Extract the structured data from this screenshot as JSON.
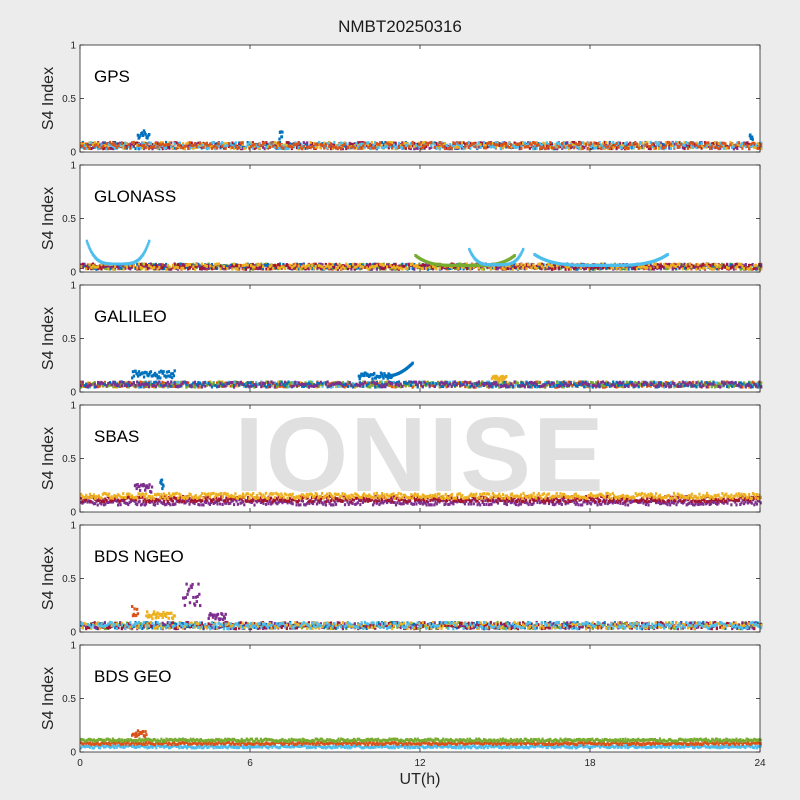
{
  "figure": {
    "title": "NMBT20250316",
    "xlabel": "UT(h)",
    "watermark": "IONISE"
  },
  "colors": [
    "#0072BD",
    "#D95319",
    "#EDB120",
    "#7E2F8E",
    "#77AC30",
    "#4DBEEE",
    "#A2142F"
  ],
  "chart_data": [
    {
      "type": "scatter",
      "panel_label": "GPS",
      "ylabel": "S4 Index",
      "xlim": [
        0,
        24
      ],
      "ylim": [
        0,
        1
      ],
      "xticks": [
        0,
        6,
        12,
        18,
        24
      ],
      "yticks": [
        0,
        0.5,
        1
      ],
      "baseline": 0.06,
      "noise": 0.03,
      "events": [
        {
          "x0": 2.0,
          "x1": 2.4,
          "peak": 0.2
        },
        {
          "x0": 7.0,
          "x1": 7.1,
          "peak": 0.19
        },
        {
          "x0": 23.6,
          "x1": 23.7,
          "peak": 0.18
        }
      ]
    },
    {
      "type": "scatter",
      "panel_label": "GLONASS",
      "ylabel": "S4 Index",
      "xlim": [
        0,
        24
      ],
      "ylim": [
        0,
        1
      ],
      "xticks": [
        0,
        6,
        12,
        18,
        24
      ],
      "yticks": [
        0,
        0.5,
        1
      ],
      "baseline": 0.05,
      "noise": 0.025,
      "events": [
        {
          "x0": 0.2,
          "x1": 2.4,
          "peak": 0.3,
          "shape": "u",
          "color": 5
        },
        {
          "x0": 11.8,
          "x1": 15.3,
          "peak": 0.16,
          "shape": "u",
          "color": 4
        },
        {
          "x0": 13.7,
          "x1": 15.6,
          "peak": 0.22,
          "shape": "u",
          "color": 5
        },
        {
          "x0": 16.0,
          "x1": 20.7,
          "peak": 0.17,
          "shape": "u",
          "color": 5
        }
      ]
    },
    {
      "type": "scatter",
      "panel_label": "GALILEO",
      "ylabel": "S4 Index",
      "xlim": [
        0,
        24
      ],
      "ylim": [
        0,
        1
      ],
      "xticks": [
        0,
        6,
        12,
        18,
        24
      ],
      "yticks": [
        0,
        0.5,
        1
      ],
      "baseline": 0.07,
      "noise": 0.025,
      "events": [
        {
          "x0": 1.8,
          "x1": 3.3,
          "peak": 0.2
        },
        {
          "x0": 9.8,
          "x1": 11.0,
          "peak": 0.18,
          "color": 0
        },
        {
          "x0": 10.8,
          "x1": 11.7,
          "peak": 0.27,
          "shape": "rise",
          "color": 0
        },
        {
          "x0": 14.5,
          "x1": 15.0,
          "peak": 0.15,
          "color": 2
        }
      ]
    },
    {
      "type": "scatter",
      "panel_label": "SBAS",
      "ylabel": "S4 Index",
      "xlim": [
        0,
        24
      ],
      "ylim": [
        0,
        1
      ],
      "xticks": [
        0,
        6,
        12,
        18,
        24
      ],
      "yticks": [
        0,
        0.5,
        1
      ],
      "baseline": 0.12,
      "noise": 0.025,
      "band": true,
      "events": [
        {
          "x0": 1.9,
          "x1": 2.5,
          "peak": 0.26,
          "color": 3
        },
        {
          "x0": 2.8,
          "x1": 2.9,
          "peak": 0.3,
          "color": 0
        }
      ]
    },
    {
      "type": "scatter",
      "panel_label": "BDS NGEO",
      "ylabel": "S4 Index",
      "xlim": [
        0,
        24
      ],
      "ylim": [
        0,
        1
      ],
      "xticks": [
        0,
        6,
        12,
        18,
        24
      ],
      "yticks": [
        0,
        0.5,
        1
      ],
      "baseline": 0.06,
      "noise": 0.03,
      "events": [
        {
          "x0": 1.8,
          "x1": 2.0,
          "peak": 0.24,
          "color": 1
        },
        {
          "x0": 2.3,
          "x1": 3.3,
          "peak": 0.19,
          "color": 2
        },
        {
          "x0": 3.6,
          "x1": 4.2,
          "peak": 0.45,
          "color": 3
        },
        {
          "x0": 4.5,
          "x1": 5.1,
          "peak": 0.18,
          "color": 3
        }
      ]
    },
    {
      "type": "scatter",
      "panel_label": "BDS GEO",
      "ylabel": "S4 Index",
      "xlim": [
        0,
        24
      ],
      "ylim": [
        0,
        1
      ],
      "xticks": [
        0,
        6,
        12,
        18,
        24
      ],
      "yticks": [
        0,
        0.5,
        1
      ],
      "baseline": 0.08,
      "noise": 0.012,
      "band": true,
      "events": [
        {
          "x0": 1.8,
          "x1": 2.3,
          "peak": 0.2,
          "color": 1
        }
      ]
    }
  ]
}
